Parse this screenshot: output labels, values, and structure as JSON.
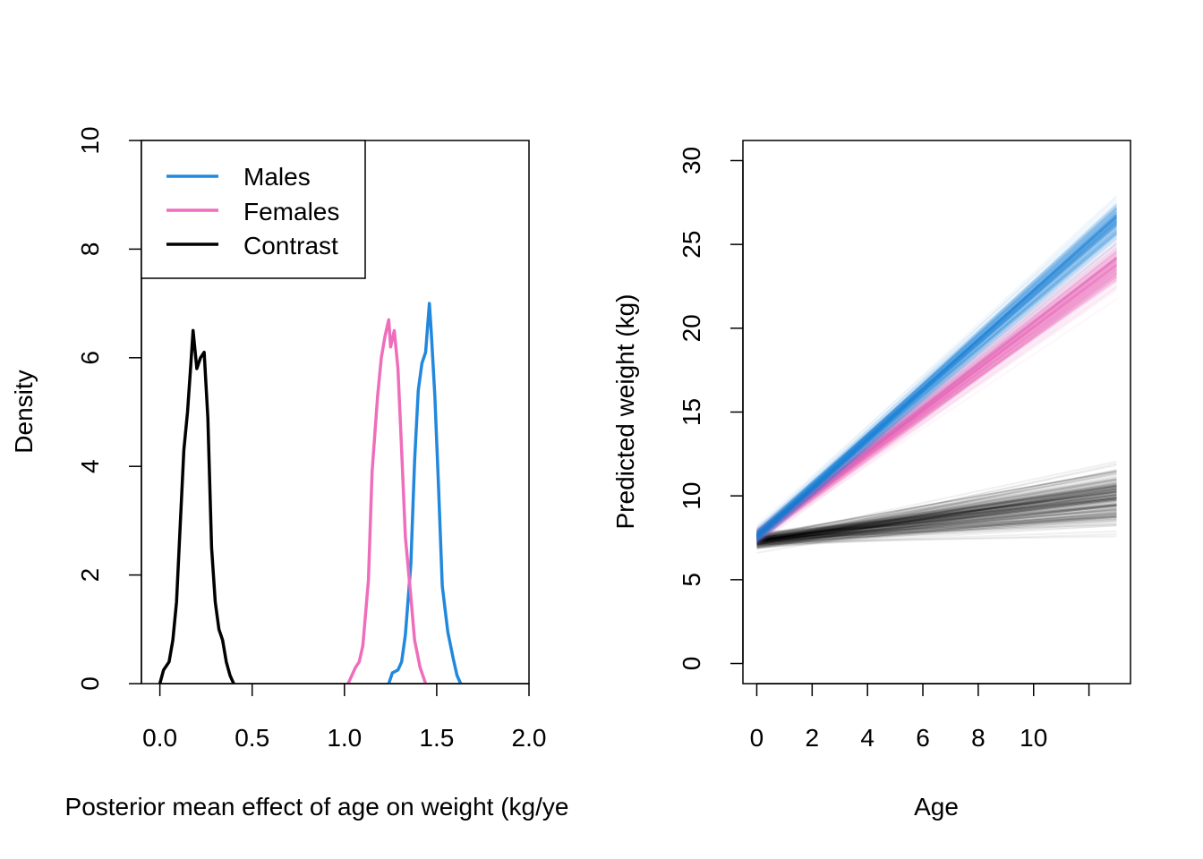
{
  "chart_data": [
    {
      "type": "line",
      "title": "",
      "xlabel": "Posterior mean effect of age on weight (kg/ye",
      "ylabel": "Density",
      "xlim": [
        -0.1,
        2.0
      ],
      "ylim": [
        0,
        10
      ],
      "x_ticks": [
        0.0,
        0.5,
        1.0,
        1.5,
        2.0
      ],
      "x_tick_labels": [
        "0.0",
        "0.5",
        "1.0",
        "1.5",
        "2.0"
      ],
      "y_ticks": [
        0,
        2,
        4,
        6,
        8,
        10
      ],
      "y_tick_labels": [
        "0",
        "2",
        "4",
        "6",
        "8",
        "10"
      ],
      "grid": false,
      "legend_position": "top-left",
      "series": [
        {
          "name": "Males",
          "color": "#2288dd",
          "points": [
            [
              1.24,
              0.0
            ],
            [
              1.26,
              0.2
            ],
            [
              1.29,
              0.25
            ],
            [
              1.31,
              0.4
            ],
            [
              1.33,
              0.9
            ],
            [
              1.36,
              2.2
            ],
            [
              1.38,
              4.1
            ],
            [
              1.4,
              5.4
            ],
            [
              1.42,
              5.9
            ],
            [
              1.44,
              6.1
            ],
            [
              1.46,
              7.0
            ],
            [
              1.47,
              6.5
            ],
            [
              1.49,
              5.3
            ],
            [
              1.51,
              3.6
            ],
            [
              1.53,
              1.8
            ],
            [
              1.56,
              0.95
            ],
            [
              1.59,
              0.45
            ],
            [
              1.61,
              0.15
            ],
            [
              1.63,
              0.0
            ]
          ]
        },
        {
          "name": "Females",
          "color": "#ee6ebb",
          "points": [
            [
              1.02,
              0.0
            ],
            [
              1.04,
              0.15
            ],
            [
              1.06,
              0.3
            ],
            [
              1.08,
              0.4
            ],
            [
              1.1,
              0.7
            ],
            [
              1.13,
              1.9
            ],
            [
              1.15,
              3.9
            ],
            [
              1.18,
              5.3
            ],
            [
              1.2,
              6.0
            ],
            [
              1.22,
              6.4
            ],
            [
              1.24,
              6.7
            ],
            [
              1.25,
              6.2
            ],
            [
              1.27,
              6.5
            ],
            [
              1.29,
              5.8
            ],
            [
              1.31,
              4.3
            ],
            [
              1.33,
              2.7
            ],
            [
              1.36,
              1.6
            ],
            [
              1.38,
              0.8
            ],
            [
              1.41,
              0.3
            ],
            [
              1.44,
              0.0
            ]
          ]
        },
        {
          "name": "Contrast",
          "color": "#000000",
          "points": [
            [
              0.0,
              0.0
            ],
            [
              0.02,
              0.25
            ],
            [
              0.05,
              0.4
            ],
            [
              0.07,
              0.8
            ],
            [
              0.09,
              1.5
            ],
            [
              0.11,
              2.9
            ],
            [
              0.13,
              4.3
            ],
            [
              0.15,
              5.0
            ],
            [
              0.17,
              6.0
            ],
            [
              0.18,
              6.5
            ],
            [
              0.2,
              5.8
            ],
            [
              0.22,
              6.0
            ],
            [
              0.24,
              6.1
            ],
            [
              0.26,
              4.9
            ],
            [
              0.28,
              2.5
            ],
            [
              0.3,
              1.5
            ],
            [
              0.32,
              1.0
            ],
            [
              0.34,
              0.8
            ],
            [
              0.36,
              0.4
            ],
            [
              0.38,
              0.15
            ],
            [
              0.4,
              0.0
            ]
          ]
        }
      ]
    },
    {
      "type": "line",
      "title": "",
      "xlabel": "Age",
      "ylabel": "Predicted weight (kg)",
      "xlim": [
        -0.5,
        13.5
      ],
      "ylim": [
        -1.2,
        31.2
      ],
      "x_ticks": [
        0,
        2,
        4,
        6,
        8,
        10,
        12
      ],
      "x_tick_labels": [
        "0",
        "2",
        "4",
        "6",
        "8",
        "10",
        ""
      ],
      "y_ticks": [
        0,
        5,
        10,
        15,
        20,
        25,
        30
      ],
      "y_tick_labels": [
        "0",
        "5",
        "10",
        "15",
        "20",
        "25",
        "30"
      ],
      "grid": false,
      "series": [
        {
          "name": "",
          "color": "#2288dd",
          "x": [
            0,
            13
          ],
          "intercept_mean": 7.6,
          "slope_mean": 1.45,
          "intercept_range": [
            7.1,
            8.1
          ],
          "slope_range": [
            1.36,
            1.56
          ]
        },
        {
          "name": "",
          "color": "#ee6ebb",
          "x": [
            0,
            13
          ],
          "intercept_mean": 7.6,
          "slope_mean": 1.24,
          "intercept_range": [
            7.1,
            8.1
          ],
          "slope_range": [
            1.14,
            1.34
          ]
        },
        {
          "name": "",
          "color": "#000000",
          "x": [
            0,
            13
          ],
          "intercept_mean": 7.3,
          "slope_mean": 0.2,
          "intercept_range": [
            6.8,
            7.8
          ],
          "slope_range": [
            0.05,
            0.38
          ]
        }
      ]
    }
  ]
}
